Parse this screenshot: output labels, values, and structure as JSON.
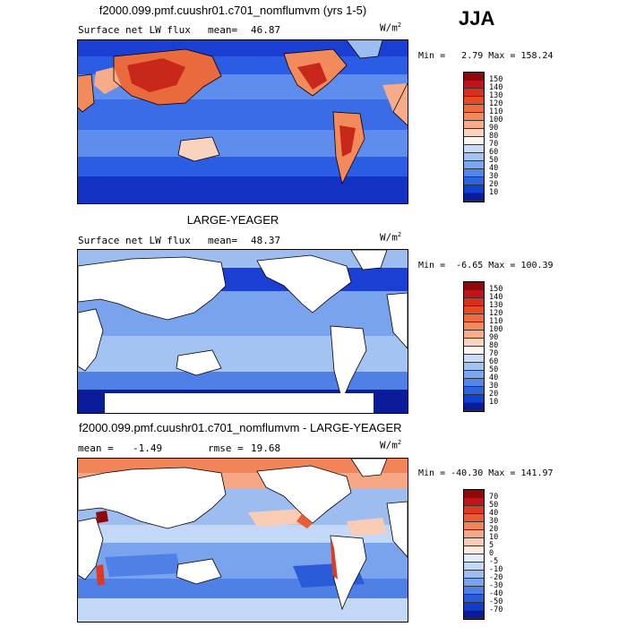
{
  "season": "JJA",
  "panels": [
    {
      "title": "f2000.099.pmf.cuushr01.c701_nomflumvm (yrs 1-5)",
      "variable": "Surface net LW flux",
      "mean_label": "mean=",
      "mean_value": "46.87",
      "rmse_label": "",
      "rmse_value": "",
      "units": "W/m",
      "units_exp": "2",
      "min_label": "Min =",
      "min_value": "2.79",
      "max_label": "Max =",
      "max_value": "158.24",
      "legend": {
        "labels": [
          "150",
          "140",
          "130",
          "120",
          "110",
          "100",
          "90",
          "80",
          "70",
          "60",
          "50",
          "40",
          "30",
          "20",
          "10"
        ],
        "colors": [
          "#8c0a0a",
          "#c0141a",
          "#d8301a",
          "#e64b24",
          "#ee6c3c",
          "#f38a5c",
          "#f6ac88",
          "#f9d3bd",
          "#fdf5f0",
          "#c9dbf6",
          "#a3c3f3",
          "#7ba7ee",
          "#5286ea",
          "#2c64e0",
          "#1042d2",
          "#0a1c9a"
        ]
      }
    },
    {
      "title": "LARGE-YEAGER",
      "variable": "Surface net LW flux",
      "mean_label": "mean=",
      "mean_value": "48.37",
      "rmse_label": "",
      "rmse_value": "",
      "units": "W/m",
      "units_exp": "2",
      "min_label": "Min =",
      "min_value": "-6.65",
      "max_label": "Max =",
      "max_value": "100.39",
      "legend": {
        "labels": [
          "150",
          "140",
          "130",
          "120",
          "110",
          "100",
          "90",
          "80",
          "70",
          "60",
          "50",
          "40",
          "30",
          "20",
          "10"
        ],
        "colors": [
          "#8c0a0a",
          "#c0141a",
          "#d8301a",
          "#e64b24",
          "#ee6c3c",
          "#f38a5c",
          "#f6ac88",
          "#f9d3bd",
          "#fdf5f0",
          "#c9dbf6",
          "#a3c3f3",
          "#7ba7ee",
          "#5286ea",
          "#2c64e0",
          "#1042d2",
          "#0a1c9a"
        ]
      }
    },
    {
      "title": "f2000.099.pmf.cuushr01.c701_nomflumvm - LARGE-YEAGER",
      "variable": "",
      "mean_label": "mean =",
      "mean_value": "-1.49",
      "rmse_label": "rmse =",
      "rmse_value": "19.68",
      "units": "W/m",
      "units_exp": "2",
      "min_label": "Min =",
      "min_value": "-40.30",
      "max_label": "Max =",
      "max_value": "141.97",
      "legend": {
        "labels": [
          "70",
          "50",
          "40",
          "30",
          "20",
          "10",
          "5",
          "0",
          "-5",
          "-10",
          "-20",
          "-30",
          "-40",
          "-50",
          "-70"
        ],
        "colors": [
          "#8c0a0a",
          "#c0141a",
          "#dc3a22",
          "#ea5c34",
          "#f2845a",
          "#f6a886",
          "#f9ccb6",
          "#fdebe2",
          "#e2ecfb",
          "#c3d7f6",
          "#9dbdf1",
          "#7aa3ed",
          "#4f80e6",
          "#2a5bd9",
          "#103fc8",
          "#0a1c9a"
        ]
      }
    }
  ]
}
